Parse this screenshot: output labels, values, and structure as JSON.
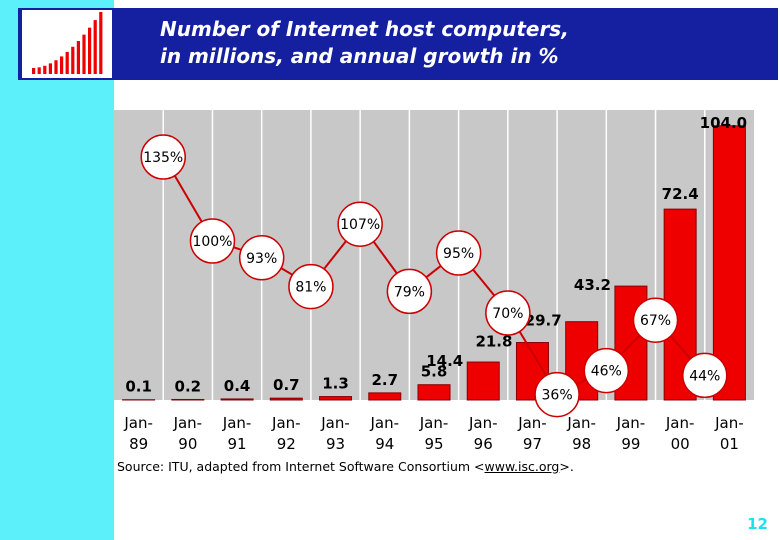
{
  "slide": {
    "title_line1": "Number of Internet host computers,",
    "title_line2": "in millions, and annual growth in %",
    "source_prefix": "Source: ITU, adapted from Internet Software Consortium <",
    "source_url": "www.isc.org",
    "source_suffix": ">.",
    "page_number": "12"
  },
  "colors": {
    "left_band": "#5cf0fa",
    "title_bar": "#1420a0",
    "bar_fill": "#ee0000",
    "bar_stroke": "#880000",
    "plot_bg": "#c8c8c8",
    "growth_line": "#cc0000",
    "page_number": "#20e0f0"
  },
  "icons": {
    "logo": "bar-chart-icon"
  },
  "chart_data": {
    "type": "bar",
    "title": "Number of Internet host computers, in millions, and annual growth in %",
    "categories": [
      [
        "Jan-",
        "89"
      ],
      [
        "Jan-",
        "90"
      ],
      [
        "Jan-",
        "91"
      ],
      [
        "Jan-",
        "92"
      ],
      [
        "Jan-",
        "93"
      ],
      [
        "Jan-",
        "94"
      ],
      [
        "Jan-",
        "95"
      ],
      [
        "Jan-",
        "96"
      ],
      [
        "Jan-",
        "97"
      ],
      [
        "Jan-",
        "98"
      ],
      [
        "Jan-",
        "99"
      ],
      [
        "Jan-",
        "00"
      ],
      [
        "Jan-",
        "01"
      ]
    ],
    "series": [
      {
        "values": [
          0.1,
          0.2,
          0.4,
          0.7,
          1.3,
          2.7,
          5.8,
          14.4,
          21.8,
          29.7,
          43.2,
          72.4,
          104.0
        ],
        "labels": [
          "0.1",
          "0.2",
          "0.4",
          "0.7",
          "1.3",
          "2.7",
          "5.8",
          "14.4",
          "21.8",
          "29.7",
          "43.2",
          "72.4",
          "104.0"
        ]
      }
    ],
    "growth_series": {
      "values": [
        135,
        100,
        93,
        81,
        107,
        79,
        95,
        70,
        36,
        46,
        67,
        44
      ],
      "labels": [
        "135%",
        "100%",
        "93%",
        "81%",
        "107%",
        "79%",
        "95%",
        "70%",
        "36%",
        "46%",
        "67%",
        "44%"
      ]
    },
    "ylim": [
      0,
      110
    ],
    "grid": true
  }
}
